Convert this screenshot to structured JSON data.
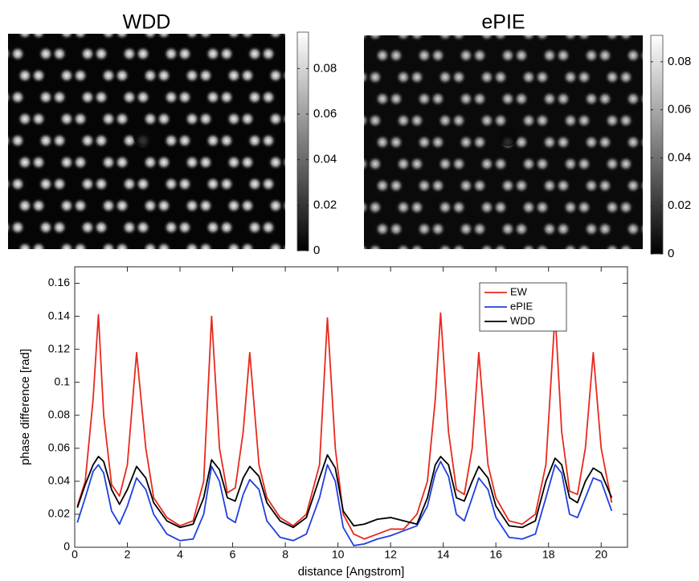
{
  "chart_data": [
    {
      "type": "image",
      "title": "WDD",
      "colormap": "gray",
      "clim": [
        0,
        0.096
      ],
      "cticks": [
        0,
        0.02,
        0.04,
        0.06,
        0.08
      ]
    },
    {
      "type": "image",
      "title": "ePIE",
      "colormap": "gray",
      "clim": [
        0,
        0.091
      ],
      "cticks": [
        0,
        0.02,
        0.04,
        0.06,
        0.08
      ]
    },
    {
      "type": "line",
      "xlabel": "distance [Angstrom]",
      "ylabel": "phase difference [rad]",
      "xlim": [
        0,
        21
      ],
      "ylim": [
        0,
        0.17
      ],
      "xticks": [
        0,
        2,
        4,
        6,
        8,
        10,
        12,
        14,
        16,
        18,
        20
      ],
      "yticks": [
        0,
        0.02,
        0.04,
        0.06,
        0.08,
        0.1,
        0.12,
        0.14,
        0.16
      ],
      "grid": false,
      "legend": "upper right",
      "x": [
        0.1,
        0.4,
        0.7,
        0.9,
        1.1,
        1.4,
        1.7,
        2.0,
        2.35,
        2.7,
        3.0,
        3.5,
        4.0,
        4.5,
        4.9,
        5.2,
        5.5,
        5.8,
        6.1,
        6.4,
        6.65,
        7.0,
        7.3,
        7.8,
        8.3,
        8.8,
        9.3,
        9.6,
        9.9,
        10.2,
        10.6,
        11.0,
        11.5,
        12.0,
        12.5,
        13.0,
        13.4,
        13.7,
        13.9,
        14.2,
        14.5,
        14.8,
        15.1,
        15.35,
        15.7,
        16.0,
        16.5,
        17.0,
        17.5,
        17.9,
        18.25,
        18.5,
        18.8,
        19.1,
        19.4,
        19.7,
        20.0,
        20.4
      ],
      "series": [
        {
          "name": "EW",
          "color": "#e8291c",
          "values": [
            0.025,
            0.04,
            0.09,
            0.141,
            0.08,
            0.038,
            0.031,
            0.05,
            0.118,
            0.06,
            0.03,
            0.018,
            0.013,
            0.016,
            0.04,
            0.14,
            0.06,
            0.033,
            0.036,
            0.07,
            0.118,
            0.05,
            0.03,
            0.018,
            0.013,
            0.02,
            0.05,
            0.139,
            0.06,
            0.02,
            0.008,
            0.005,
            0.008,
            0.011,
            0.011,
            0.02,
            0.04,
            0.09,
            0.142,
            0.07,
            0.035,
            0.032,
            0.06,
            0.118,
            0.05,
            0.03,
            0.016,
            0.014,
            0.02,
            0.05,
            0.142,
            0.07,
            0.034,
            0.032,
            0.06,
            0.118,
            0.06,
            0.027
          ]
        },
        {
          "name": "ePIE",
          "color": "#1f3fe0",
          "values": [
            0.015,
            0.03,
            0.046,
            0.05,
            0.045,
            0.022,
            0.014,
            0.025,
            0.042,
            0.035,
            0.02,
            0.008,
            0.004,
            0.005,
            0.02,
            0.049,
            0.04,
            0.018,
            0.015,
            0.032,
            0.041,
            0.035,
            0.016,
            0.006,
            0.004,
            0.008,
            0.03,
            0.05,
            0.04,
            0.012,
            0.001,
            0.002,
            0.005,
            0.007,
            0.01,
            0.013,
            0.025,
            0.045,
            0.052,
            0.043,
            0.02,
            0.016,
            0.03,
            0.042,
            0.035,
            0.018,
            0.006,
            0.005,
            0.008,
            0.03,
            0.05,
            0.045,
            0.02,
            0.018,
            0.03,
            0.042,
            0.04,
            0.022
          ]
        },
        {
          "name": "WDD",
          "color": "#000000",
          "values": [
            0.024,
            0.038,
            0.05,
            0.055,
            0.052,
            0.035,
            0.026,
            0.035,
            0.049,
            0.042,
            0.027,
            0.016,
            0.012,
            0.014,
            0.03,
            0.053,
            0.047,
            0.03,
            0.028,
            0.042,
            0.049,
            0.043,
            0.027,
            0.016,
            0.012,
            0.018,
            0.042,
            0.056,
            0.048,
            0.022,
            0.013,
            0.014,
            0.017,
            0.018,
            0.016,
            0.014,
            0.03,
            0.05,
            0.055,
            0.05,
            0.03,
            0.028,
            0.04,
            0.049,
            0.042,
            0.025,
            0.013,
            0.012,
            0.016,
            0.04,
            0.054,
            0.05,
            0.03,
            0.027,
            0.04,
            0.048,
            0.045,
            0.03
          ]
        }
      ]
    }
  ]
}
